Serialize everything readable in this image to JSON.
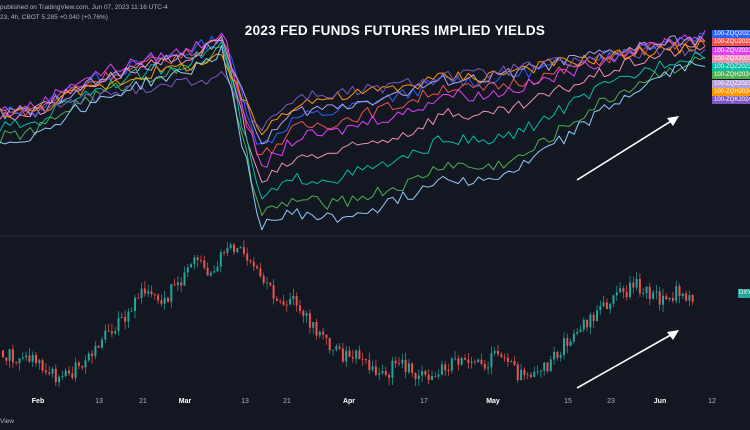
{
  "header": {
    "published": "published on TradingView.com, Jun 07, 2023 11:16 UTC-4",
    "symbol_line": "23, 4h, CBOT  5.285  +0.040 (+0.76%)"
  },
  "footer": {
    "text": "View"
  },
  "chart_data": [
    {
      "type": "line",
      "title": "2023 FED FUNDS FUTURES IMPLIED YIELDS",
      "xlabel": "",
      "ylabel": "",
      "grid": true,
      "legend_placement": "right",
      "series": [
        {
          "name": "100-ZQQ2023",
          "color": "#2962ff",
          "values": [
            4.6,
            4.62,
            4.85,
            4.98,
            5.1,
            5.18,
            5.35,
            4.25,
            4.55,
            4.6,
            4.7,
            4.78,
            4.92,
            4.9,
            4.98,
            5.05,
            5.15,
            5.22,
            5.3,
            5.35
          ]
        },
        {
          "name": "100-ZQU2023",
          "color": "#ef5350",
          "values": [
            4.6,
            4.63,
            4.84,
            4.97,
            5.08,
            5.16,
            5.33,
            4.15,
            4.45,
            4.5,
            4.6,
            4.7,
            4.85,
            4.82,
            4.9,
            4.98,
            5.1,
            5.18,
            5.25,
            5.28
          ]
        },
        {
          "name": "100-ZQV2023",
          "color": "#e040fb",
          "values": [
            4.62,
            4.66,
            4.9,
            5.02,
            5.12,
            5.2,
            5.38,
            4.05,
            4.35,
            4.4,
            4.52,
            4.6,
            4.78,
            4.76,
            4.84,
            4.95,
            5.08,
            5.2,
            5.3,
            5.36
          ]
        },
        {
          "name": "100-ZQX2023",
          "color": "#f48fb1",
          "values": [
            4.55,
            4.6,
            4.82,
            4.95,
            5.05,
            5.12,
            5.3,
            3.9,
            4.15,
            4.2,
            4.3,
            4.4,
            4.6,
            4.55,
            4.65,
            4.8,
            4.95,
            5.08,
            5.18,
            5.25
          ]
        },
        {
          "name": "100-ZQZ2023",
          "color": "#00bfa5",
          "values": [
            4.45,
            4.5,
            4.75,
            4.88,
            5.0,
            5.08,
            5.28,
            3.75,
            3.95,
            3.95,
            4.05,
            4.15,
            4.35,
            4.3,
            4.4,
            4.6,
            4.8,
            4.95,
            5.1,
            5.18
          ]
        },
        {
          "name": "100-ZQH2024",
          "color": "#4caf50",
          "values": [
            4.35,
            4.42,
            4.68,
            4.82,
            4.95,
            5.02,
            5.22,
            3.6,
            3.75,
            3.7,
            3.8,
            3.9,
            4.1,
            4.05,
            4.15,
            4.4,
            4.65,
            4.85,
            5.02,
            5.12
          ]
        },
        {
          "name": "100-ZQZ2023",
          "color": "#b39ddb",
          "values": [
            4.58,
            4.62,
            4.82,
            4.95,
            5.06,
            5.14,
            5.32,
            4.3,
            4.6,
            4.65,
            4.72,
            4.8,
            4.92,
            4.92,
            5.0,
            5.08,
            5.15,
            5.22,
            5.28,
            5.32
          ]
        },
        {
          "name": "100-ZQH2024",
          "color": "#ff9800",
          "values": [
            4.6,
            4.62,
            4.78,
            4.88,
            4.98,
            5.05,
            5.12,
            4.4,
            4.7,
            4.74,
            4.8,
            4.86,
            4.95,
            4.95,
            5.02,
            5.08,
            5.12,
            5.18,
            5.22,
            5.25
          ]
        },
        {
          "name": "100-ZQK2024",
          "color": "#7e57c2",
          "values": [
            4.6,
            4.6,
            4.7,
            4.78,
            4.85,
            4.9,
            4.95,
            4.45,
            4.75,
            4.78,
            4.82,
            4.88,
            4.96,
            4.97,
            5.03,
            5.08,
            5.12,
            5.16,
            5.2,
            5.22
          ]
        },
        {
          "name": "",
          "color": "#90caf9",
          "values": [
            4.3,
            4.38,
            4.62,
            4.76,
            4.9,
            4.98,
            5.2,
            3.5,
            3.62,
            3.55,
            3.65,
            3.78,
            3.98,
            3.92,
            4.05,
            4.3,
            4.55,
            4.78,
            4.98,
            5.1
          ]
        }
      ]
    },
    {
      "type": "candlestick",
      "legend": "DXY",
      "up_color": "#26a69a",
      "down_color": "#ef5350",
      "values": [
        102.3,
        101.9,
        102.1,
        101.6,
        101.3,
        101.7,
        102.2,
        102.8,
        103.2,
        103.9,
        104.4,
        104.0,
        104.6,
        105.2,
        104.9,
        105.5,
        105.8,
        105.3,
        104.6,
        103.7,
        103.9,
        103.2,
        102.6,
        102.1,
        102.3,
        101.8,
        101.5,
        101.9,
        101.6,
        101.3,
        101.7,
        102.0,
        101.7,
        101.9,
        102.2,
        101.5,
        101.3,
        101.8,
        102.4,
        102.9,
        103.3,
        103.8,
        104.1,
        104.5,
        104.2,
        103.9,
        104.3,
        104.0
      ]
    }
  ],
  "x_axis": {
    "ticks": [
      "Feb",
      "13",
      "21",
      "Mar",
      "13",
      "21",
      "Apr",
      "17",
      "May",
      "15",
      "23",
      "Jun",
      "12"
    ],
    "bold_ticks": [
      "Feb",
      "Mar",
      "Apr",
      "May",
      "Jun"
    ]
  }
}
